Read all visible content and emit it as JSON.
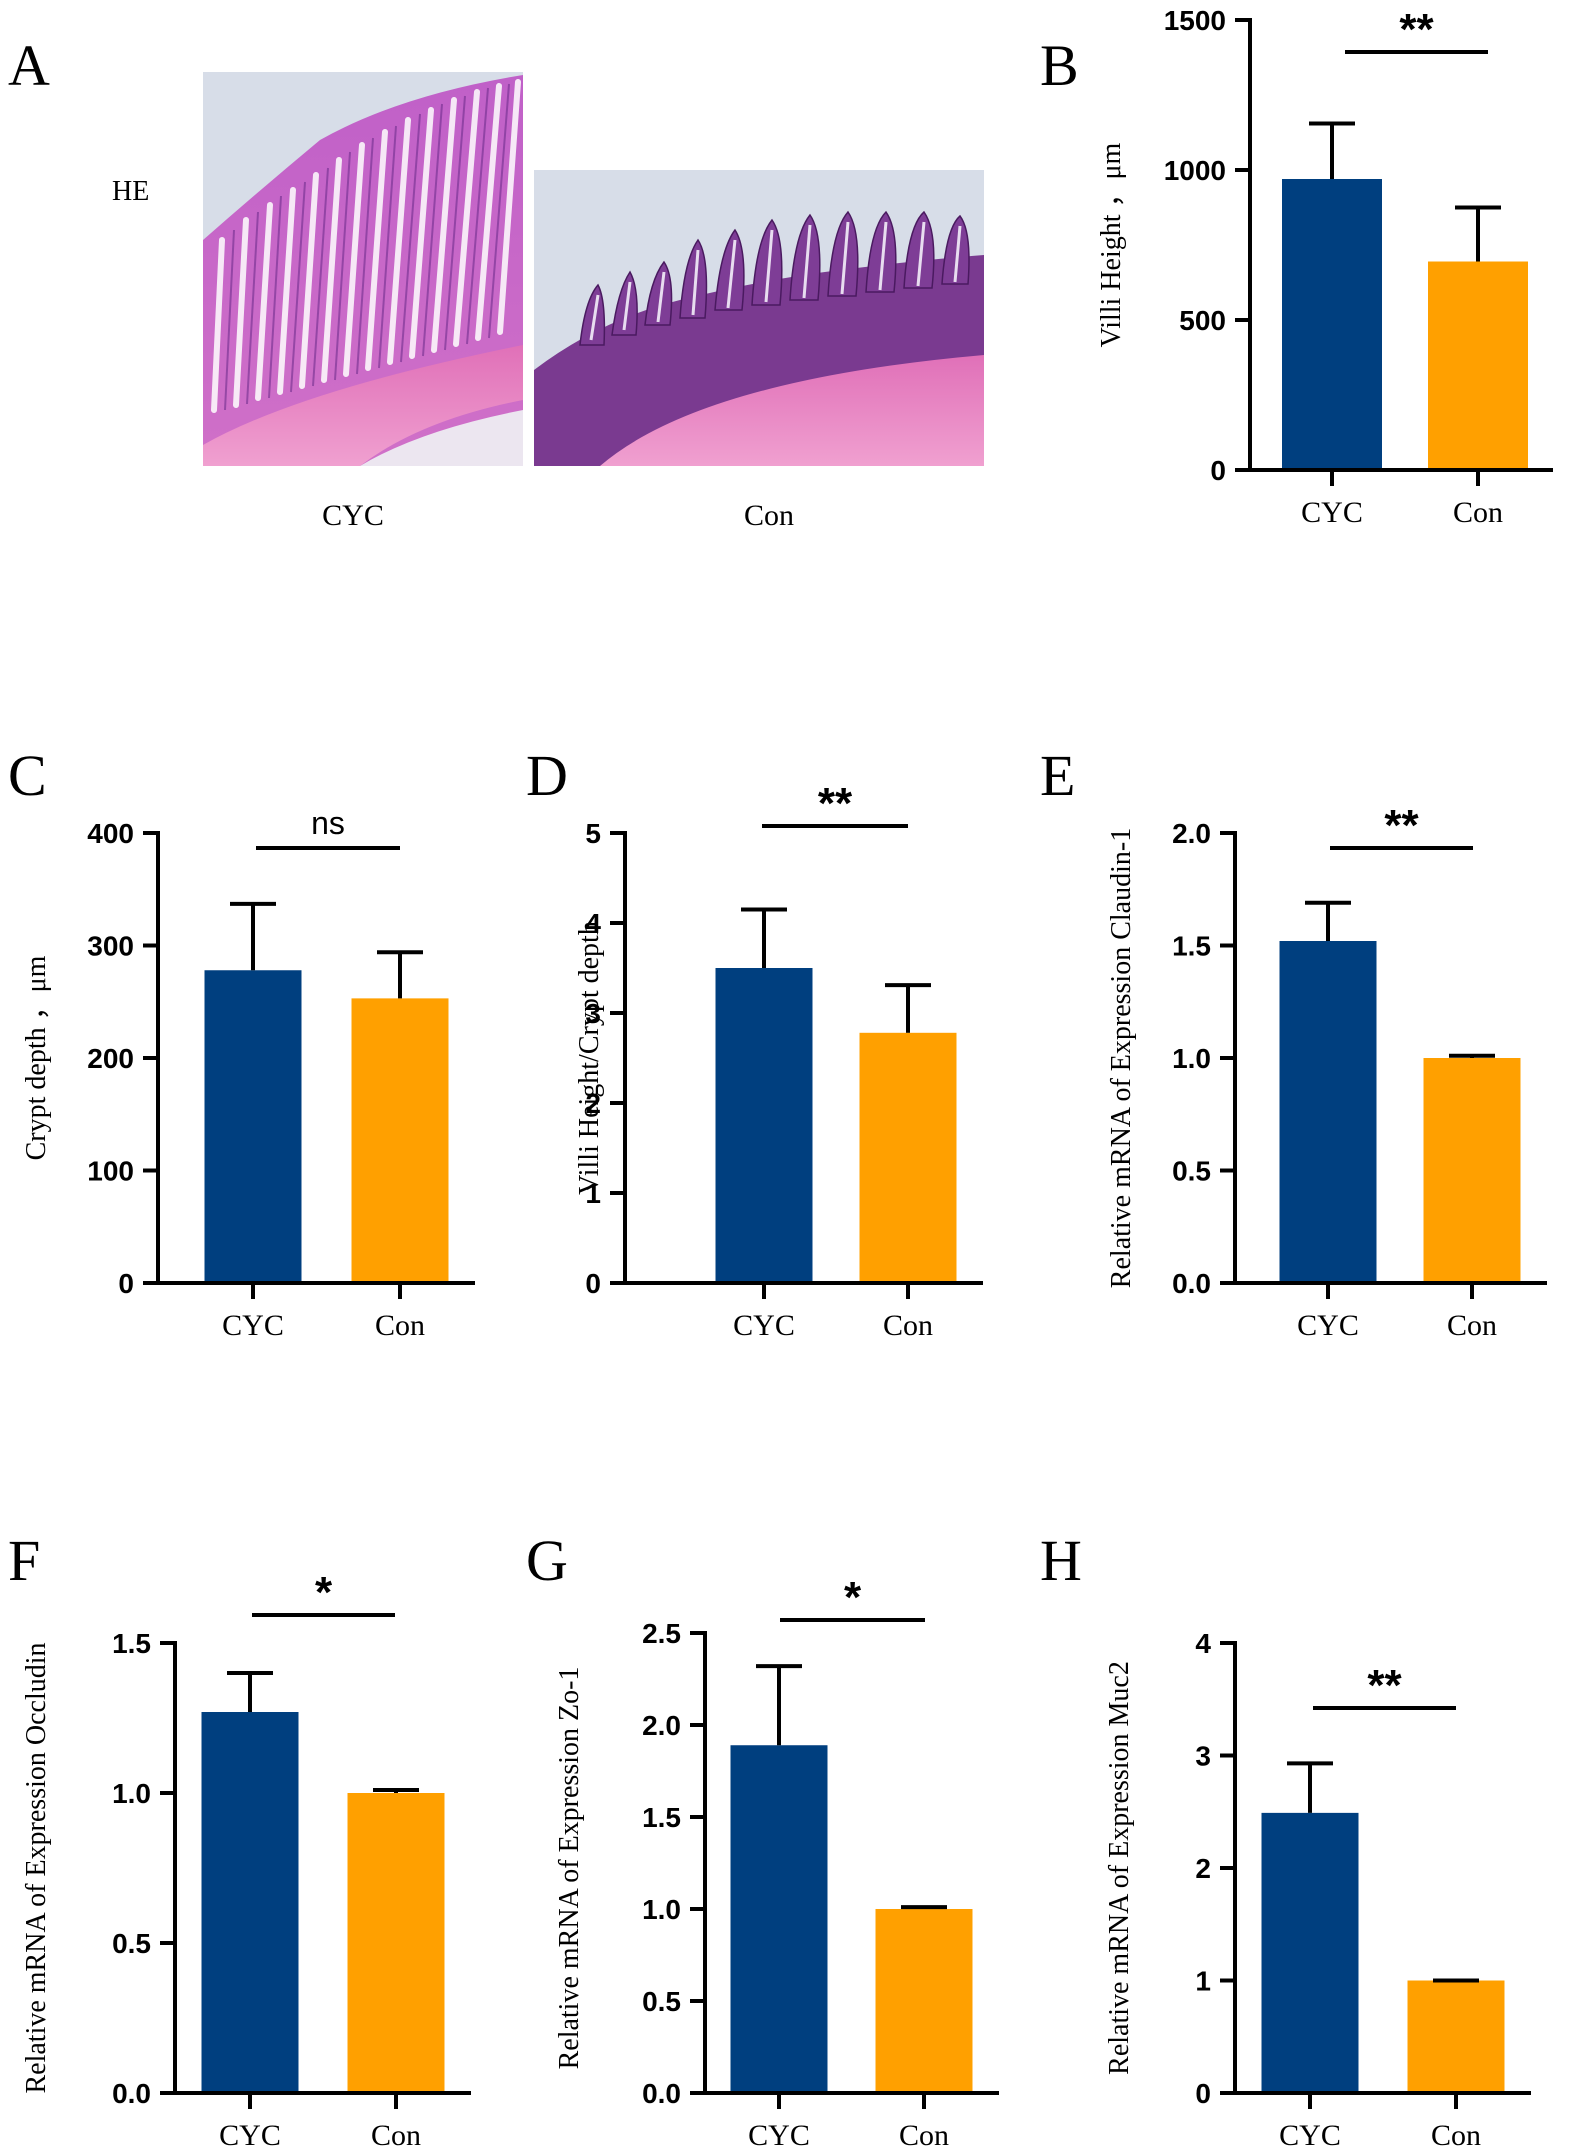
{
  "colors": {
    "cyc": "#003f7f",
    "con": "#ffa000",
    "axis": "#000000"
  },
  "panelA": {
    "letter": "A",
    "stain_label": "HE",
    "images": [
      {
        "label": "CYC",
        "icon": "he-stained-villi-image-cyc"
      },
      {
        "label": "Con",
        "icon": "he-stained-villi-image-con"
      }
    ]
  },
  "chart_data": [
    {
      "type": "bar",
      "panel": "B",
      "title": "",
      "ylabel": "Villi Height ，μm",
      "categories": [
        "CYC",
        "Con"
      ],
      "values": [
        970,
        695
      ],
      "errors": [
        185,
        180
      ],
      "ylim": [
        0,
        1500
      ],
      "yticks": [
        0,
        500,
        1000,
        1500
      ],
      "ytick_labels": [
        "0",
        "500",
        "1000",
        "1500"
      ],
      "significance": "**"
    },
    {
      "type": "bar",
      "panel": "C",
      "title": "",
      "ylabel": "Crypt depth ，μm",
      "categories": [
        "CYC",
        "Con"
      ],
      "values": [
        278,
        253
      ],
      "errors": [
        59,
        41
      ],
      "ylim": [
        0,
        400
      ],
      "yticks": [
        0,
        100,
        200,
        300,
        400
      ],
      "ytick_labels": [
        "0",
        "100",
        "200",
        "300",
        "400"
      ],
      "significance": "ns"
    },
    {
      "type": "bar",
      "panel": "D",
      "title": "",
      "ylabel": "Villi Height/Crypt depth",
      "categories": [
        "CYC",
        "Con"
      ],
      "values": [
        3.5,
        2.78
      ],
      "errors": [
        0.65,
        0.53
      ],
      "ylim": [
        0,
        5
      ],
      "yticks": [
        0,
        1,
        2,
        3,
        4,
        5
      ],
      "ytick_labels": [
        "0",
        "1",
        "2",
        "3",
        "4",
        "5"
      ],
      "significance": "**"
    },
    {
      "type": "bar",
      "panel": "E",
      "title": "",
      "ylabel": "Relative mRNA of Expression Claudin-1",
      "categories": [
        "CYC",
        "Con"
      ],
      "values": [
        1.52,
        1.0
      ],
      "errors": [
        0.17,
        0.01
      ],
      "ylim": [
        0,
        2.0
      ],
      "yticks": [
        0,
        0.5,
        1.0,
        1.5,
        2.0
      ],
      "ytick_labels": [
        "0.0",
        "0.5",
        "1.0",
        "1.5",
        "2.0"
      ],
      "significance": "**"
    },
    {
      "type": "bar",
      "panel": "F",
      "title": "",
      "ylabel": "Relative mRNA of Expression Occludin",
      "categories": [
        "CYC",
        "Con"
      ],
      "values": [
        1.27,
        1.0
      ],
      "errors": [
        0.13,
        0.01
      ],
      "ylim": [
        0,
        1.5
      ],
      "yticks": [
        0,
        0.5,
        1.0,
        1.5
      ],
      "ytick_labels": [
        "0.0",
        "0.5",
        "1.0",
        "1.5"
      ],
      "significance": "*"
    },
    {
      "type": "bar",
      "panel": "G",
      "title": "",
      "ylabel": "Relative mRNA of Expression Zo-1",
      "categories": [
        "CYC",
        "Con"
      ],
      "values": [
        1.89,
        1.0
      ],
      "errors": [
        0.43,
        0.01
      ],
      "ylim": [
        0,
        2.5
      ],
      "yticks": [
        0,
        0.5,
        1.0,
        1.5,
        2.0,
        2.5
      ],
      "ytick_labels": [
        "0.0",
        "0.5",
        "1.0",
        "1.5",
        "2.0",
        "2.5"
      ],
      "significance": "*"
    },
    {
      "type": "bar",
      "panel": "H",
      "title": "",
      "ylabel": "Relative mRNA of Expression Muc2",
      "categories": [
        "CYC",
        "Con"
      ],
      "values": [
        2.49,
        1.0
      ],
      "errors": [
        0.44,
        0
      ],
      "ylim": [
        0,
        4
      ],
      "yticks": [
        0,
        1,
        2,
        3,
        4
      ],
      "ytick_labels": [
        "0",
        "1",
        "2",
        "3",
        "4"
      ],
      "significance": "**"
    }
  ]
}
